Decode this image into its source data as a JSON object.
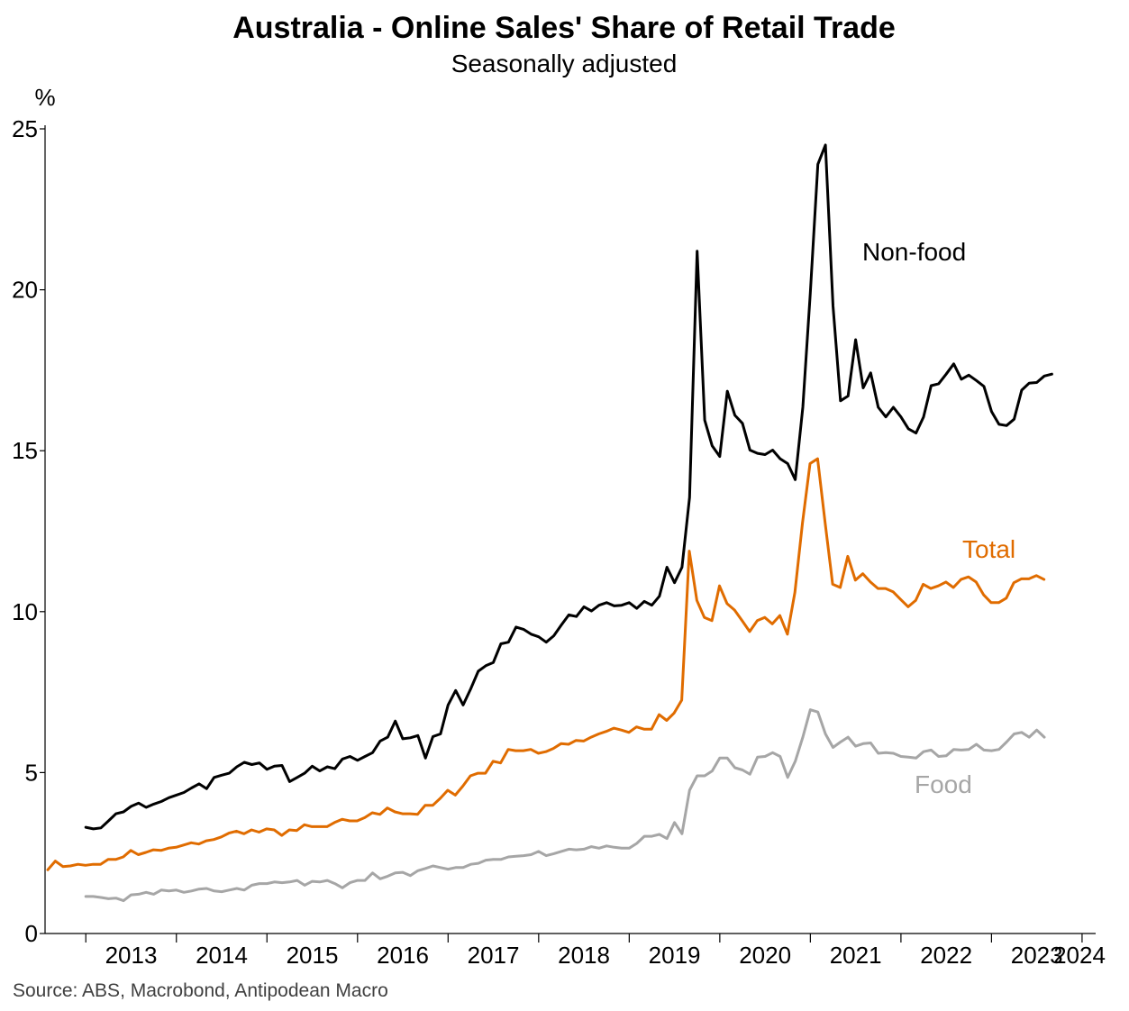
{
  "chart_data": {
    "type": "line",
    "title": "Australia - Online Sales' Share of Retail Trade",
    "subtitle": "Seasonally adjusted",
    "ylabel": "%",
    "xlabel": "",
    "source": "Source: ABS, Macrobond, Antipodean Macro",
    "ylim": [
      0,
      25
    ],
    "yticks": [
      "0",
      "5",
      "10",
      "15",
      "20",
      "25"
    ],
    "x_range": [
      2012.55,
      2024.15
    ],
    "x_tick_labels": [
      {
        "year": 2013,
        "label": "2013"
      },
      {
        "year": 2014,
        "label": "2014"
      },
      {
        "year": 2015,
        "label": "2015"
      },
      {
        "year": 2016,
        "label": "2016"
      },
      {
        "year": 2017,
        "label": "2017"
      },
      {
        "year": 2018,
        "label": "2018"
      },
      {
        "year": 2019,
        "label": "2019"
      },
      {
        "year": 2020,
        "label": "2020"
      },
      {
        "year": 2021,
        "label": "2021"
      },
      {
        "year": 2022,
        "label": "2022"
      },
      {
        "year": 2023,
        "label": "2023"
      },
      {
        "year": 2024,
        "label": "2024"
      }
    ],
    "series": [
      {
        "name": "Non-food",
        "label": "Non-food",
        "color": "#000000",
        "start": 2013.0,
        "step": 0.08333,
        "values": [
          3.3,
          3.25,
          3.28,
          3.5,
          3.72,
          3.78,
          3.95,
          4.05,
          3.92,
          4.02,
          4.1,
          4.22,
          4.3,
          4.38,
          4.52,
          4.65,
          4.5,
          4.85,
          4.92,
          4.98,
          5.18,
          5.32,
          5.25,
          5.3,
          5.1,
          5.2,
          5.22,
          4.72,
          4.85,
          4.98,
          5.2,
          5.05,
          5.18,
          5.12,
          5.42,
          5.5,
          5.38,
          5.5,
          5.62,
          5.98,
          6.1,
          6.6,
          6.05,
          6.08,
          6.15,
          5.45,
          6.12,
          6.2,
          7.1,
          7.55,
          7.1,
          7.6,
          8.15,
          8.32,
          8.42,
          9.0,
          9.05,
          9.52,
          9.45,
          9.3,
          9.22,
          9.05,
          9.25,
          9.58,
          9.9,
          9.85,
          10.15,
          10.02,
          10.2,
          10.28,
          10.18,
          10.2,
          10.28,
          10.1,
          10.32,
          10.2,
          10.48,
          11.38,
          10.9,
          11.38,
          13.55,
          21.2,
          15.95,
          15.15,
          14.82,
          16.85,
          16.1,
          15.85,
          15.02,
          14.92,
          14.88,
          15.02,
          14.75,
          14.6,
          14.1,
          16.35,
          19.9,
          23.9,
          24.5,
          19.5,
          16.55,
          16.7,
          18.45,
          16.95,
          17.42,
          16.35,
          16.05,
          16.35,
          16.05,
          15.68,
          15.55,
          16.05,
          17.02,
          17.08,
          17.38,
          17.7,
          17.22,
          17.35,
          17.18,
          17.0,
          16.22,
          15.82,
          15.78,
          15.98,
          16.88,
          17.1,
          17.12,
          17.32,
          17.38
        ]
      },
      {
        "name": "Total",
        "label": "Total",
        "color": "#e06c00",
        "start": 2012.58,
        "step": 0.08333,
        "values": [
          1.98,
          2.25,
          2.08,
          2.1,
          2.15,
          2.12,
          2.15,
          2.15,
          2.3,
          2.3,
          2.38,
          2.58,
          2.45,
          2.52,
          2.6,
          2.58,
          2.65,
          2.68,
          2.75,
          2.82,
          2.78,
          2.88,
          2.92,
          3.0,
          3.12,
          3.18,
          3.1,
          3.22,
          3.15,
          3.25,
          3.22,
          3.05,
          3.22,
          3.2,
          3.38,
          3.32,
          3.32,
          3.32,
          3.45,
          3.55,
          3.5,
          3.5,
          3.6,
          3.75,
          3.7,
          3.9,
          3.78,
          3.72,
          3.72,
          3.7,
          3.98,
          3.98,
          4.2,
          4.45,
          4.3,
          4.58,
          4.9,
          4.98,
          4.98,
          5.35,
          5.3,
          5.72,
          5.68,
          5.68,
          5.72,
          5.6,
          5.65,
          5.75,
          5.9,
          5.88,
          6.0,
          5.98,
          6.1,
          6.2,
          6.28,
          6.38,
          6.32,
          6.25,
          6.42,
          6.35,
          6.35,
          6.8,
          6.62,
          6.85,
          7.25,
          11.88,
          10.35,
          9.82,
          9.72,
          10.8,
          10.25,
          10.05,
          9.72,
          9.38,
          9.72,
          9.82,
          9.62,
          9.88,
          9.3,
          10.6,
          12.75,
          14.6,
          14.75,
          12.75,
          10.85,
          10.75,
          11.72,
          10.98,
          11.18,
          10.92,
          10.72,
          10.72,
          10.62,
          10.38,
          10.15,
          10.35,
          10.85,
          10.72,
          10.8,
          10.92,
          10.75,
          11.0,
          11.08,
          10.92,
          10.52,
          10.28,
          10.28,
          10.42,
          10.9,
          11.02,
          11.02,
          11.12,
          11.0
        ]
      },
      {
        "name": "Food",
        "label": "Food",
        "color": "#a6a6a6",
        "start": 2013.0,
        "step": 0.08333,
        "values": [
          1.15,
          1.15,
          1.12,
          1.08,
          1.1,
          1.02,
          1.2,
          1.22,
          1.28,
          1.22,
          1.35,
          1.32,
          1.35,
          1.28,
          1.32,
          1.38,
          1.4,
          1.32,
          1.3,
          1.35,
          1.4,
          1.35,
          1.5,
          1.55,
          1.55,
          1.6,
          1.58,
          1.6,
          1.65,
          1.5,
          1.62,
          1.6,
          1.65,
          1.55,
          1.42,
          1.58,
          1.65,
          1.65,
          1.88,
          1.7,
          1.78,
          1.88,
          1.9,
          1.8,
          1.95,
          2.02,
          2.1,
          2.05,
          2.0,
          2.05,
          2.05,
          2.15,
          2.18,
          2.28,
          2.3,
          2.3,
          2.38,
          2.4,
          2.42,
          2.45,
          2.55,
          2.42,
          2.48,
          2.55,
          2.62,
          2.6,
          2.62,
          2.7,
          2.65,
          2.72,
          2.68,
          2.65,
          2.65,
          2.8,
          3.02,
          3.02,
          3.08,
          2.95,
          3.45,
          3.1,
          4.45,
          4.9,
          4.9,
          5.05,
          5.45,
          5.45,
          5.15,
          5.08,
          4.95,
          5.48,
          5.5,
          5.62,
          5.5,
          4.85,
          5.35,
          6.1,
          6.95,
          6.88,
          6.2,
          5.78,
          5.95,
          6.1,
          5.82,
          5.9,
          5.92,
          5.6,
          5.62,
          5.6,
          5.5,
          5.48,
          5.45,
          5.65,
          5.7,
          5.5,
          5.52,
          5.72,
          5.7,
          5.72,
          5.88,
          5.7,
          5.68,
          5.72,
          5.95,
          6.2,
          6.25,
          6.1,
          6.32,
          6.1
        ]
      }
    ]
  }
}
